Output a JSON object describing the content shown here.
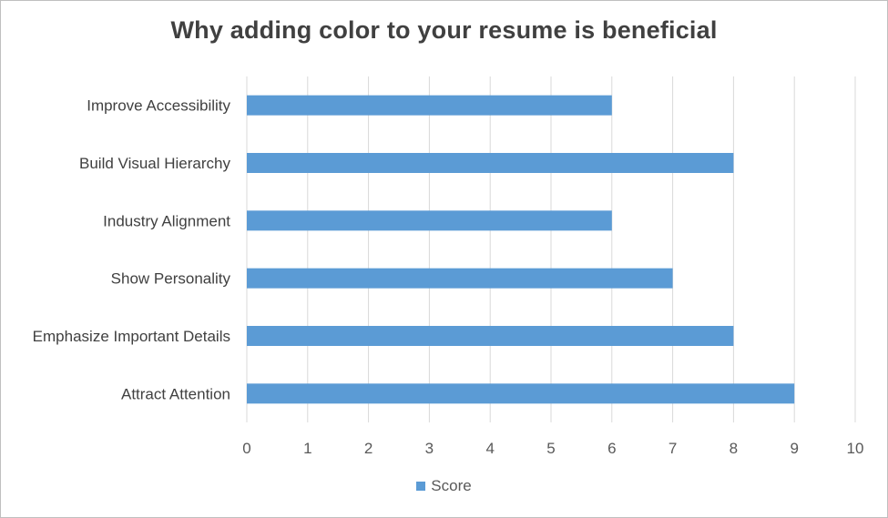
{
  "chart_data": {
    "type": "bar",
    "orientation": "horizontal",
    "title": "Why adding color to your resume is beneficial",
    "categories": [
      "Improve Accessibility",
      "Build Visual Hierarchy",
      "Industry Alignment",
      "Show Personality",
      "Emphasize Important Details",
      "Attract Attention"
    ],
    "series": [
      {
        "name": "Score",
        "values": [
          6,
          8,
          6,
          7,
          8,
          9
        ]
      }
    ],
    "xlim": [
      0,
      10
    ],
    "xticks": [
      "0",
      "1",
      "2",
      "3",
      "4",
      "5",
      "6",
      "7",
      "8",
      "9",
      "10"
    ],
    "xlabel": "",
    "ylabel": "",
    "grid": "vertical",
    "legend_position": "bottom",
    "bar_color": "#5b9bd5"
  }
}
